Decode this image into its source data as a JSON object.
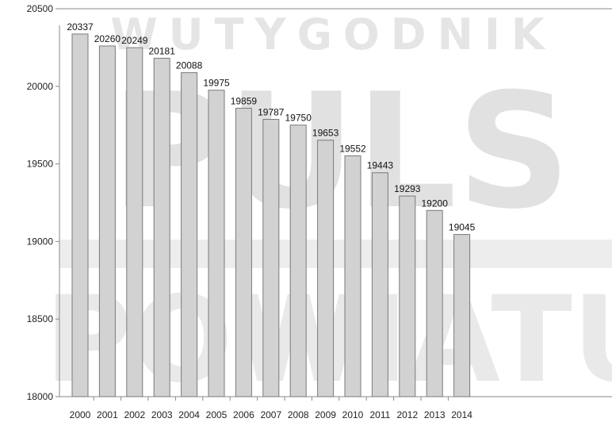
{
  "watermark": {
    "top_text": "WUTYGODNIK",
    "middle_text": "PULS",
    "bottom_text": "POWIATU"
  },
  "chart_data": {
    "type": "bar",
    "title": "",
    "xlabel": "",
    "ylabel": "",
    "categories": [
      "2000",
      "2001",
      "2002",
      "2003",
      "2004",
      "2005",
      "2006",
      "2007",
      "2008",
      "2009",
      "2010",
      "2011",
      "2012",
      "2013",
      "2014"
    ],
    "values": [
      20337,
      20260,
      20249,
      20181,
      20088,
      19975,
      19859,
      19787,
      19750,
      19653,
      19552,
      19443,
      19293,
      19200,
      19045
    ],
    "ylim": [
      18000,
      20500
    ],
    "yticks": [
      18000,
      18500,
      19000,
      19500,
      20000,
      20500
    ],
    "grid": false,
    "legend": "none",
    "colors": {
      "bar_fill": "#d2d2d2",
      "bar_stroke": "#7a7a7a",
      "axis": "#8a8a8a"
    }
  }
}
